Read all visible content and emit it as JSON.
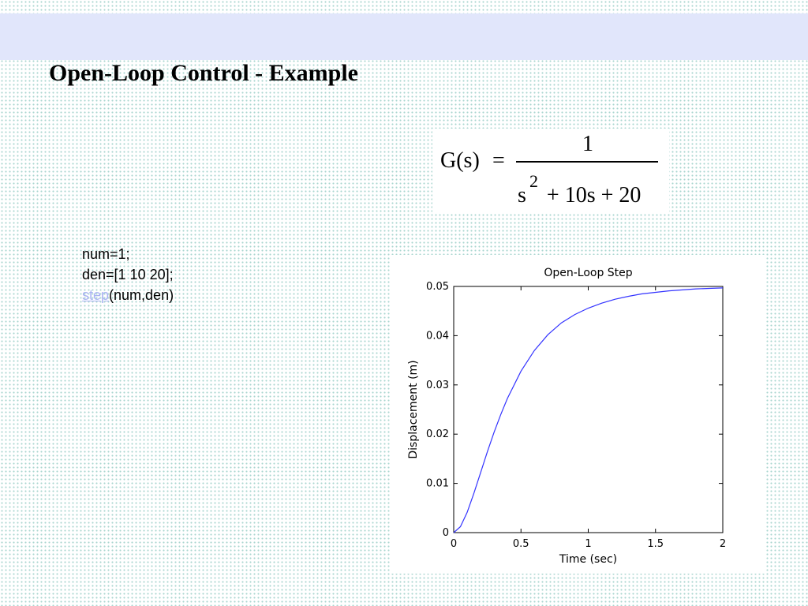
{
  "slide": {
    "title": "Open-Loop Control - Example"
  },
  "equation": {
    "lhs": "G(s)",
    "equals": "=",
    "numerator": "1",
    "denominator_s": "s",
    "denominator_exp": "2",
    "denominator_rest": "+ 10s + 20"
  },
  "code": {
    "line1": "num=1;",
    "line2": "den=[1 10 20];",
    "line3_link": "step",
    "line3_rest": "(num,den)"
  },
  "chart_data": {
    "type": "line",
    "title": "Open-Loop Step",
    "xlabel": "Time (sec)",
    "ylabel": "Displacement (m)",
    "xlim": [
      0,
      2
    ],
    "ylim": [
      0,
      0.05
    ],
    "xticks": [
      0,
      0.5,
      1,
      1.5,
      2
    ],
    "xtick_labels": [
      "0",
      "0.5",
      "1",
      "1.5",
      "2"
    ],
    "yticks": [
      0,
      0.01,
      0.02,
      0.03,
      0.04,
      0.05
    ],
    "ytick_labels": [
      "0",
      "0.01",
      "0.02",
      "0.03",
      "0.04",
      "0.05"
    ],
    "steady_state_line": 0.05,
    "grid": false,
    "series": [
      {
        "color": "#3333ff",
        "x": [
          0,
          0.05,
          0.1,
          0.15,
          0.2,
          0.25,
          0.3,
          0.35,
          0.4,
          0.5,
          0.6,
          0.7,
          0.8,
          0.9,
          1.0,
          1.1,
          1.2,
          1.3,
          1.4,
          1.5,
          1.6,
          1.7,
          1.8,
          1.9,
          2.0
        ],
        "y": [
          0,
          0.0012,
          0.0041,
          0.008,
          0.0122,
          0.0164,
          0.0204,
          0.024,
          0.0273,
          0.0328,
          0.037,
          0.0402,
          0.0426,
          0.0443,
          0.0456,
          0.0466,
          0.0474,
          0.048,
          0.0485,
          0.0488,
          0.0491,
          0.0493,
          0.0495,
          0.0496,
          0.0497
        ]
      }
    ]
  }
}
